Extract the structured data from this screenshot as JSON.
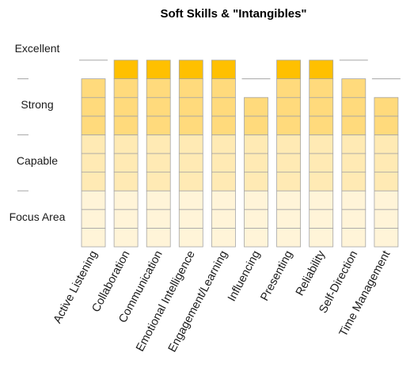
{
  "chart_data": {
    "type": "bar",
    "title": "Soft Skills & \"Intangibles\"",
    "xlabel": "",
    "ylabel": "",
    "categories": [
      "Active Listening",
      "Collaboration",
      "Communication",
      "Emotional Intelligence",
      "Engagement/Learning",
      "Influencing",
      "Presenting",
      "Reliability",
      "Self-Direction",
      "Time Management"
    ],
    "values": [
      9,
      10,
      10,
      10,
      10,
      8,
      10,
      10,
      9,
      8
    ],
    "ylim": [
      0,
      10
    ],
    "y_level_labels": [
      "Focus Area",
      "Capable",
      "Strong",
      "Excellent"
    ],
    "segment_colors": [
      "#FFF4D8",
      "#FFF4D8",
      "#FFF4D8",
      "#FFEAB4",
      "#FFEAB4",
      "#FFEAB4",
      "#FFDA7C",
      "#FFDA7C",
      "#FFDA7C",
      "#FFC000"
    ],
    "segment_border_color": "#A5A5A5",
    "level_tick_color": "#A6A6A6",
    "grid": false,
    "legend": "none"
  }
}
